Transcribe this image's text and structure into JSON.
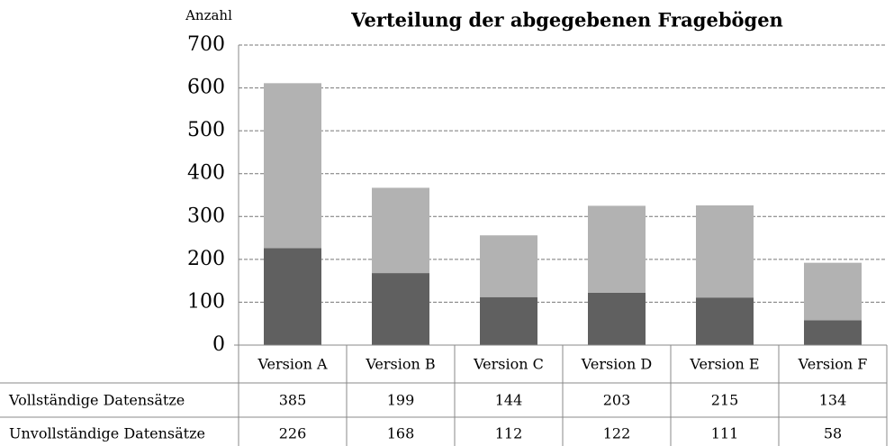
{
  "chart_data": {
    "type": "bar",
    "stacked": true,
    "title": "Verteilung der abgegebenen Fragebögen",
    "y_label": "Anzahl",
    "categories": [
      "Version A",
      "Version B",
      "Version C",
      "Version D",
      "Version E",
      "Version F"
    ],
    "series": [
      {
        "name": "Vollständige Datensätze",
        "color": "#b2b2b2",
        "values": [
          385,
          199,
          144,
          203,
          215,
          134
        ]
      },
      {
        "name": "Unvollständige Datensätze",
        "color": "#606060",
        "values": [
          226,
          168,
          112,
          122,
          111,
          58
        ]
      }
    ],
    "ylim": [
      0,
      700
    ],
    "yticks": [
      0,
      100,
      200,
      300,
      400,
      500,
      600,
      700
    ],
    "grid": true
  }
}
